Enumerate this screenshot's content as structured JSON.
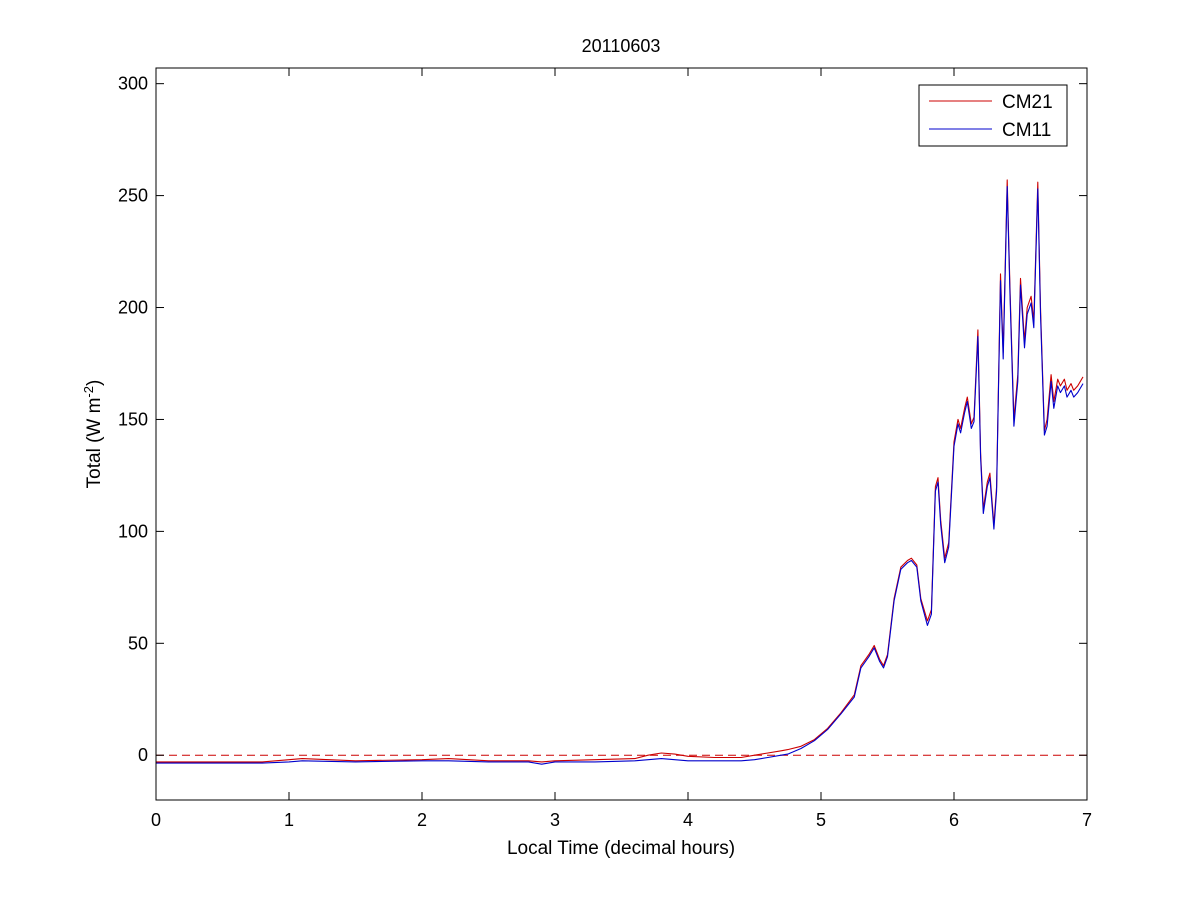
{
  "colors": {
    "CM21": "#cc0000",
    "CM11": "#0000cc",
    "zero_line": "#cc0000"
  },
  "chart_data": {
    "type": "line",
    "title": "20110603",
    "xlabel": "Local Time (decimal hours)",
    "ylabel": {
      "prefix": "Total (W m",
      "superscript": "-2",
      "suffix": ")"
    },
    "xlim": [
      0,
      7
    ],
    "ylim": [
      -20,
      307
    ],
    "xticks": [
      0,
      1,
      2,
      3,
      4,
      5,
      6,
      7
    ],
    "xtick_labels": [
      "0",
      "1",
      "2",
      "3",
      "4",
      "5",
      "6",
      "7"
    ],
    "yticks": [
      0,
      50,
      100,
      150,
      200,
      250,
      300
    ],
    "ytick_labels": [
      "0",
      "50",
      "100",
      "150",
      "200",
      "250",
      "300"
    ],
    "grid": false,
    "legend_position": "top-right",
    "reference_line": {
      "y": 0,
      "style": "dashed"
    },
    "series": [
      {
        "name": "CM21",
        "x": [
          0,
          0.4,
          0.8,
          1.0,
          1.1,
          1.5,
          2.0,
          2.2,
          2.5,
          2.8,
          2.9,
          3.0,
          3.3,
          3.6,
          3.7,
          3.8,
          3.9,
          4.0,
          4.2,
          4.4,
          4.5,
          4.6,
          4.7,
          4.75,
          4.85,
          4.95,
          5.05,
          5.15,
          5.25,
          5.3,
          5.36,
          5.4,
          5.44,
          5.47,
          5.5,
          5.55,
          5.6,
          5.65,
          5.68,
          5.72,
          5.75,
          5.8,
          5.83,
          5.86,
          5.88,
          5.9,
          5.93,
          5.96,
          6.0,
          6.03,
          6.05,
          6.08,
          6.1,
          6.13,
          6.15,
          6.18,
          6.2,
          6.22,
          6.25,
          6.27,
          6.3,
          6.32,
          6.35,
          6.37,
          6.4,
          6.42,
          6.45,
          6.48,
          6.5,
          6.53,
          6.55,
          6.58,
          6.6,
          6.63,
          6.65,
          6.68,
          6.7,
          6.73,
          6.75,
          6.78,
          6.8,
          6.83,
          6.85,
          6.88,
          6.9,
          6.93,
          6.97
        ],
        "y": [
          -3,
          -3,
          -3,
          -2,
          -1.5,
          -2.5,
          -2,
          -1.5,
          -2.5,
          -2.5,
          -3,
          -2.5,
          -2,
          -1.5,
          0,
          1,
          0.5,
          -0.5,
          -1,
          -1,
          0,
          1,
          2,
          2.5,
          4,
          7,
          12,
          19,
          27,
          40,
          45,
          49,
          43,
          40,
          45,
          70,
          84,
          87,
          88,
          85,
          70,
          60,
          65,
          120,
          124,
          105,
          88,
          95,
          140,
          150,
          146,
          155,
          160,
          148,
          151,
          190,
          135,
          110,
          122,
          126,
          103,
          120,
          215,
          180,
          257,
          210,
          150,
          170,
          213,
          185,
          200,
          205,
          194,
          256,
          200,
          145,
          150,
          170,
          158,
          168,
          165,
          168,
          163,
          166,
          163,
          165,
          169
        ]
      },
      {
        "name": "CM11",
        "x": [
          0,
          0.4,
          0.8,
          1.0,
          1.1,
          1.5,
          2.0,
          2.2,
          2.5,
          2.8,
          2.9,
          3.0,
          3.3,
          3.6,
          3.7,
          3.8,
          3.9,
          4.0,
          4.2,
          4.4,
          4.5,
          4.6,
          4.7,
          4.75,
          4.85,
          4.95,
          5.05,
          5.15,
          5.25,
          5.3,
          5.36,
          5.4,
          5.44,
          5.47,
          5.5,
          5.55,
          5.6,
          5.65,
          5.68,
          5.72,
          5.75,
          5.8,
          5.83,
          5.86,
          5.88,
          5.9,
          5.93,
          5.96,
          6.0,
          6.03,
          6.05,
          6.08,
          6.1,
          6.13,
          6.15,
          6.18,
          6.2,
          6.22,
          6.25,
          6.27,
          6.3,
          6.32,
          6.35,
          6.37,
          6.4,
          6.42,
          6.45,
          6.48,
          6.5,
          6.53,
          6.55,
          6.58,
          6.6,
          6.63,
          6.65,
          6.68,
          6.7,
          6.73,
          6.75,
          6.78,
          6.8,
          6.83,
          6.85,
          6.88,
          6.9,
          6.93,
          6.97
        ],
        "y": [
          -3.5,
          -3.5,
          -3.5,
          -3,
          -2.5,
          -3,
          -2.5,
          -2.5,
          -3,
          -3,
          -4,
          -3,
          -3,
          -2.5,
          -2,
          -1.5,
          -2,
          -2.5,
          -2.5,
          -2.5,
          -2,
          -1,
          0,
          0.5,
          3,
          6.5,
          11.5,
          18.5,
          26,
          39,
          44,
          48,
          42,
          39,
          44,
          69,
          83,
          86,
          87,
          84,
          69,
          58,
          63,
          118,
          122,
          103,
          86,
          93,
          138,
          148,
          144,
          153,
          158,
          146,
          149,
          187,
          133,
          108,
          120,
          124,
          101,
          118,
          212,
          177,
          254,
          207,
          147,
          167,
          210,
          182,
          197,
          202,
          191,
          253,
          197,
          143,
          147,
          167,
          155,
          165,
          162,
          165,
          160,
          163,
          160,
          162,
          166
        ]
      }
    ]
  }
}
